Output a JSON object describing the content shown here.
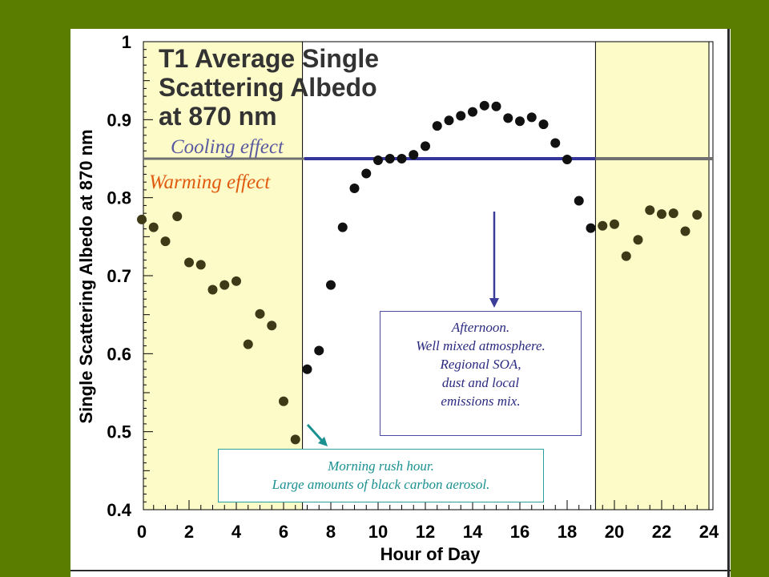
{
  "chart_data": {
    "type": "scatter",
    "title": [
      "T1 Average Single",
      "Scattering Albedo",
      "at 870 nm"
    ],
    "xlabel": "Hour of Day",
    "ylabel": "Single Scattering Albedo at 870 nm",
    "xlim": [
      0,
      24
    ],
    "ylim": [
      0.4,
      1.0
    ],
    "x_ticks": [
      "0",
      "2",
      "4",
      "6",
      "8",
      "10",
      "12",
      "14",
      "16",
      "18",
      "20",
      "22",
      "24"
    ],
    "y_ticks": [
      "0.4",
      "0.5",
      "0.6",
      "0.7",
      "0.8",
      "0.9",
      "1"
    ],
    "highlight_bands": [
      [
        0,
        6.8
      ],
      [
        19.2,
        24
      ]
    ],
    "threshold": 0.85,
    "threshold_labels": {
      "above": "Cooling effect",
      "below": "Warming effect"
    },
    "points": [
      {
        "x": 0.0,
        "y": 0.772
      },
      {
        "x": 0.5,
        "y": 0.762
      },
      {
        "x": 1.0,
        "y": 0.744
      },
      {
        "x": 1.5,
        "y": 0.776
      },
      {
        "x": 2.0,
        "y": 0.717
      },
      {
        "x": 2.5,
        "y": 0.714
      },
      {
        "x": 3.0,
        "y": 0.682
      },
      {
        "x": 3.5,
        "y": 0.688
      },
      {
        "x": 4.0,
        "y": 0.693
      },
      {
        "x": 4.5,
        "y": 0.612
      },
      {
        "x": 5.0,
        "y": 0.651
      },
      {
        "x": 5.5,
        "y": 0.636
      },
      {
        "x": 6.0,
        "y": 0.539
      },
      {
        "x": 6.5,
        "y": 0.49
      },
      {
        "x": 7.0,
        "y": 0.58
      },
      {
        "x": 7.5,
        "y": 0.604
      },
      {
        "x": 8.0,
        "y": 0.688
      },
      {
        "x": 8.5,
        "y": 0.762
      },
      {
        "x": 9.0,
        "y": 0.812
      },
      {
        "x": 9.5,
        "y": 0.831
      },
      {
        "x": 10.0,
        "y": 0.848
      },
      {
        "x": 10.5,
        "y": 0.85
      },
      {
        "x": 11.0,
        "y": 0.85
      },
      {
        "x": 11.5,
        "y": 0.855
      },
      {
        "x": 12.0,
        "y": 0.866
      },
      {
        "x": 12.5,
        "y": 0.892
      },
      {
        "x": 13.0,
        "y": 0.899
      },
      {
        "x": 13.5,
        "y": 0.905
      },
      {
        "x": 14.0,
        "y": 0.91
      },
      {
        "x": 14.5,
        "y": 0.918
      },
      {
        "x": 15.0,
        "y": 0.917
      },
      {
        "x": 15.5,
        "y": 0.902
      },
      {
        "x": 16.0,
        "y": 0.898
      },
      {
        "x": 16.5,
        "y": 0.903
      },
      {
        "x": 17.0,
        "y": 0.894
      },
      {
        "x": 17.5,
        "y": 0.87
      },
      {
        "x": 18.0,
        "y": 0.849
      },
      {
        "x": 18.5,
        "y": 0.796
      },
      {
        "x": 19.0,
        "y": 0.761
      },
      {
        "x": 19.5,
        "y": 0.764
      },
      {
        "x": 20.0,
        "y": 0.766
      },
      {
        "x": 20.5,
        "y": 0.725
      },
      {
        "x": 21.0,
        "y": 0.746
      },
      {
        "x": 21.5,
        "y": 0.784
      },
      {
        "x": 22.0,
        "y": 0.779
      },
      {
        "x": 22.5,
        "y": 0.78
      },
      {
        "x": 23.0,
        "y": 0.757
      },
      {
        "x": 23.5,
        "y": 0.778
      }
    ]
  },
  "annotations": {
    "afternoon": [
      "Afternoon.",
      "Well mixed atmosphere.",
      "Regional SOA,",
      "dust and local",
      "emissions mix."
    ],
    "morning": [
      "Morning rush hour.",
      "Large amounts of black carbon aerosol."
    ]
  },
  "colors": {
    "background": "#5a7d00",
    "band": "#fdfbc8",
    "points": "#111111",
    "threshold_line": "#34349a",
    "threshold_line_band": "#707070",
    "cooling_text": "#5a5aa0",
    "warming_text": "#e05a10",
    "afternoon_arrow": "#3c3c9a",
    "morning_arrow": "#1a9090"
  }
}
